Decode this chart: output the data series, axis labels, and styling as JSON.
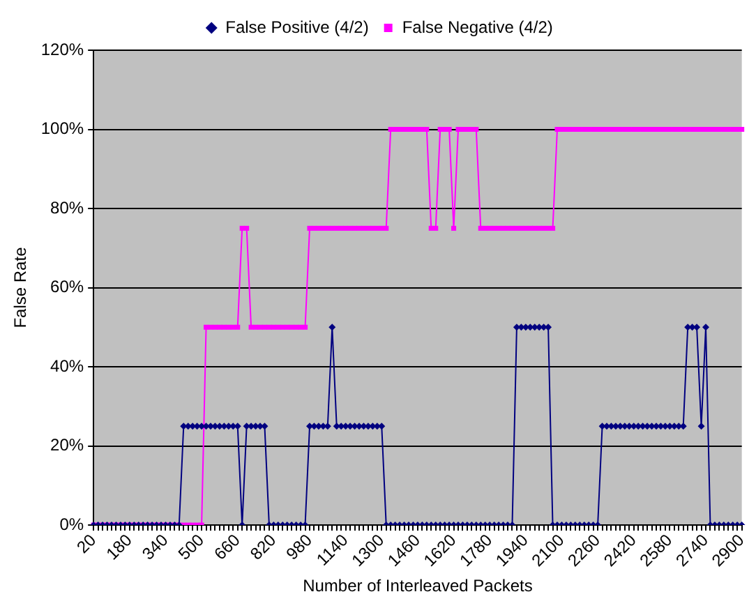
{
  "chart_data": {
    "type": "line",
    "xlabel": "Number of Interleaved Packets",
    "ylabel": "False Rate",
    "categories": [
      "20",
      null,
      null,
      null,
      null,
      null,
      null,
      null,
      "180",
      null,
      null,
      null,
      null,
      null,
      null,
      null,
      "340",
      null,
      null,
      null,
      null,
      null,
      null,
      null,
      "500",
      null,
      null,
      null,
      null,
      null,
      null,
      null,
      "660",
      null,
      null,
      null,
      null,
      null,
      null,
      null,
      "820",
      null,
      null,
      null,
      null,
      null,
      null,
      null,
      "980",
      null,
      null,
      null,
      null,
      null,
      null,
      null,
      "1140",
      null,
      null,
      null,
      null,
      null,
      null,
      null,
      "1300",
      null,
      null,
      null,
      null,
      null,
      null,
      null,
      "1460",
      null,
      null,
      null,
      null,
      null,
      null,
      null,
      "1620",
      null,
      null,
      null,
      null,
      null,
      null,
      null,
      "1780",
      null,
      null,
      null,
      null,
      null,
      null,
      null,
      "1940",
      null,
      null,
      null,
      null,
      null,
      null,
      null,
      "2100",
      null,
      null,
      null,
      null,
      null,
      null,
      null,
      "2260",
      null,
      null,
      null,
      null,
      null,
      null,
      null,
      "2420",
      null,
      null,
      null,
      null,
      null,
      null,
      null,
      "2580",
      null,
      null,
      null,
      null,
      null,
      null,
      null,
      "2740",
      null,
      null,
      null,
      null,
      null,
      null,
      null,
      "2900"
    ],
    "series": [
      {
        "name": "False Positive (4/2)",
        "color": "#000080",
        "marker": "diamond",
        "values": [
          0,
          0,
          0,
          0,
          0,
          0,
          0,
          0,
          0,
          0,
          0,
          0,
          0,
          0,
          0,
          0,
          0,
          0,
          0,
          0,
          25,
          25,
          25,
          25,
          25,
          25,
          25,
          25,
          25,
          25,
          25,
          25,
          25,
          0,
          25,
          25,
          25,
          25,
          25,
          0,
          0,
          0,
          0,
          0,
          0,
          0,
          0,
          0,
          25,
          25,
          25,
          25,
          25,
          50,
          25,
          25,
          25,
          25,
          25,
          25,
          25,
          25,
          25,
          25,
          25,
          0,
          0,
          0,
          0,
          0,
          0,
          0,
          0,
          0,
          0,
          0,
          0,
          0,
          0,
          0,
          0,
          0,
          0,
          0,
          0,
          0,
          0,
          0,
          0,
          0,
          0,
          0,
          0,
          0,
          50,
          50,
          50,
          50,
          50,
          50,
          50,
          50,
          0,
          0,
          0,
          0,
          0,
          0,
          0,
          0,
          0,
          0,
          0,
          25,
          25,
          25,
          25,
          25,
          25,
          25,
          25,
          25,
          25,
          25,
          25,
          25,
          25,
          25,
          25,
          25,
          25,
          25,
          50,
          50,
          50,
          25,
          50,
          0,
          0,
          0,
          0,
          0,
          0,
          0,
          0
        ]
      },
      {
        "name": "False Negative (4/2)",
        "color": "#ff00ff",
        "marker": "square",
        "values": [
          0,
          0,
          0,
          0,
          0,
          0,
          0,
          0,
          0,
          0,
          0,
          0,
          0,
          0,
          0,
          0,
          0,
          0,
          0,
          0,
          0,
          0,
          0,
          0,
          0,
          50,
          50,
          50,
          50,
          50,
          50,
          50,
          50,
          75,
          75,
          50,
          50,
          50,
          50,
          50,
          50,
          50,
          50,
          50,
          50,
          50,
          50,
          50,
          75,
          75,
          75,
          75,
          75,
          75,
          75,
          75,
          75,
          75,
          75,
          75,
          75,
          75,
          75,
          75,
          75,
          75,
          100,
          100,
          100,
          100,
          100,
          100,
          100,
          100,
          100,
          75,
          75,
          100,
          100,
          100,
          75,
          100,
          100,
          100,
          100,
          100,
          75,
          75,
          75,
          75,
          75,
          75,
          75,
          75,
          75,
          75,
          75,
          75,
          75,
          75,
          75,
          75,
          75,
          100,
          100,
          100,
          100,
          100,
          100,
          100,
          100,
          100,
          100,
          100,
          100,
          100,
          100,
          100,
          100,
          100,
          100,
          100,
          100,
          100,
          100,
          100,
          100,
          100,
          100,
          100,
          100,
          100,
          100,
          100,
          100,
          100,
          100,
          100,
          100,
          100,
          100,
          100,
          100,
          100,
          100
        ]
      }
    ],
    "ylim": [
      0,
      120
    ],
    "yticks": [
      {
        "value": 0,
        "label": "0%"
      },
      {
        "value": 20,
        "label": "20%"
      },
      {
        "value": 40,
        "label": "40%"
      },
      {
        "value": 60,
        "label": "60%"
      },
      {
        "value": 80,
        "label": "80%"
      },
      {
        "value": 100,
        "label": "100%"
      },
      {
        "value": 120,
        "label": "120%"
      }
    ],
    "grid": "y",
    "legend": "top",
    "line_style": "solid"
  }
}
